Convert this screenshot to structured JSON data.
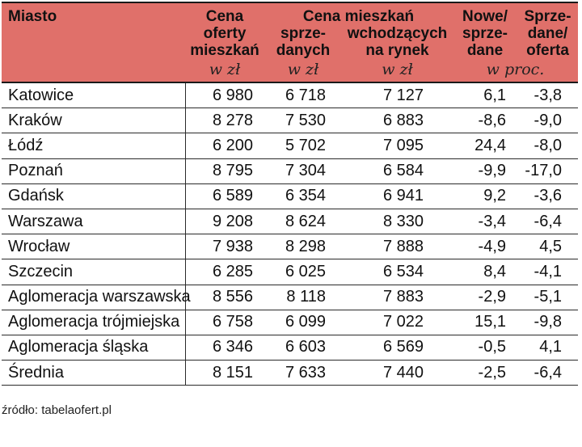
{
  "header": {
    "city": "Miasto",
    "offer_price": [
      "Cena",
      "oferty",
      "mieszkań"
    ],
    "group_label": "Cena mieszkań",
    "sold": [
      "sprze-",
      "danych"
    ],
    "new_market": [
      "wchodzących",
      "na rynek"
    ],
    "new_vs_sold": [
      "Nowe/",
      "sprze-",
      "dane"
    ],
    "sold_vs_offer": [
      "Sprze-",
      "dane/",
      "oferta"
    ],
    "unit_pln": "w zł",
    "unit_pct": "w proc."
  },
  "rows": [
    {
      "city": "Katowice",
      "offer": "6 980",
      "sold": "6 718",
      "new": "7 127",
      "new_sold": "6,1",
      "sold_offer": "-3,8"
    },
    {
      "city": "Kraków",
      "offer": "8 278",
      "sold": "7 530",
      "new": "6 883",
      "new_sold": "-8,6",
      "sold_offer": "-9,0"
    },
    {
      "city": "Łódź",
      "offer": "6 200",
      "sold": "5 702",
      "new": "7 095",
      "new_sold": "24,4",
      "sold_offer": "-8,0"
    },
    {
      "city": "Poznań",
      "offer": "8 795",
      "sold": "7 304",
      "new": "6 584",
      "new_sold": "-9,9",
      "sold_offer": "-17,0"
    },
    {
      "city": "Gdańsk",
      "offer": "6 589",
      "sold": "6 354",
      "new": "6 941",
      "new_sold": "9,2",
      "sold_offer": "-3,6"
    },
    {
      "city": "Warszawa",
      "offer": "9 208",
      "sold": "8 624",
      "new": "8 330",
      "new_sold": "-3,4",
      "sold_offer": "-6,4"
    },
    {
      "city": "Wrocław",
      "offer": "7 938",
      "sold": "8 298",
      "new": "7 888",
      "new_sold": "-4,9",
      "sold_offer": "4,5"
    },
    {
      "city": "Szczecin",
      "offer": "6 285",
      "sold": "6 025",
      "new": "6 534",
      "new_sold": "8,4",
      "sold_offer": "-4,1"
    },
    {
      "city": "Aglomeracja warszawska",
      "offer": "8 556",
      "sold": "8 118",
      "new": "7 883",
      "new_sold": "-2,9",
      "sold_offer": "-5,1"
    },
    {
      "city": "Aglomeracja trójmiejska",
      "offer": "6 758",
      "sold": "6 099",
      "new": "7 022",
      "new_sold": "15,1",
      "sold_offer": "-9,8"
    },
    {
      "city": "Aglomeracja śląska",
      "offer": "6 346",
      "sold": "6 603",
      "new": "6 569",
      "new_sold": "-0,5",
      "sold_offer": "4,1"
    },
    {
      "city": "Średnia",
      "offer": "8 151",
      "sold": "7 633",
      "new": "7 440",
      "new_sold": "-2,5",
      "sold_offer": "-6,4"
    }
  ],
  "source": "źródło: tabelaofert.pl",
  "colors": {
    "header_bg": "#e0706a",
    "text": "#111111"
  }
}
